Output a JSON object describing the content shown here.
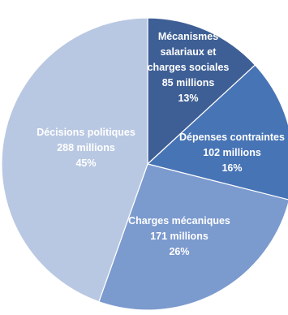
{
  "chart_data": {
    "type": "pie",
    "title": "",
    "slices": [
      {
        "lines": [
          "Mécanismes",
          "salariaux et",
          "charges sociales"
        ],
        "value_label": "85 millions",
        "percent_label": "13%",
        "value": 85,
        "color": "#3e5f95"
      },
      {
        "lines": [
          "Dépenses contraintes"
        ],
        "value_label": "102 millions",
        "percent_label": "16%",
        "value": 102,
        "color": "#4774b5"
      },
      {
        "lines": [
          "Charges mécaniques"
        ],
        "value_label": "171 millions",
        "percent_label": "26%",
        "value": 171,
        "color": "#7b9ace"
      },
      {
        "lines": [
          "Décisions politiques"
        ],
        "value_label": "288 millions",
        "percent_label": "45%",
        "value": 288,
        "color": "#b9c8e2"
      }
    ]
  }
}
